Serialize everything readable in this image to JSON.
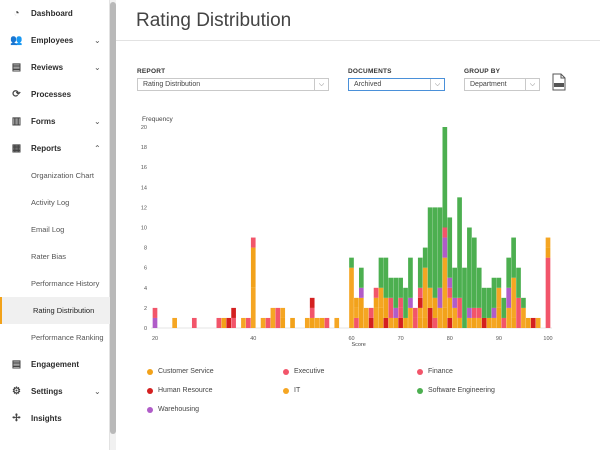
{
  "sidebar": {
    "items": [
      {
        "label": "Dashboard",
        "icon": "dashboard-icon",
        "glyph": "◔",
        "chev": ""
      },
      {
        "label": "Employees",
        "icon": "employees-icon",
        "glyph": "👥",
        "chev": "⌄"
      },
      {
        "label": "Reviews",
        "icon": "reviews-icon",
        "glyph": "▤",
        "chev": "⌄"
      },
      {
        "label": "Processes",
        "icon": "processes-icon",
        "glyph": "⟳",
        "chev": ""
      },
      {
        "label": "Forms",
        "icon": "forms-icon",
        "glyph": "▥",
        "chev": "⌄"
      },
      {
        "label": "Reports",
        "icon": "reports-icon",
        "glyph": "▦",
        "chev": "⌃"
      }
    ],
    "report_items": [
      "Organization Chart",
      "Activity Log",
      "Email Log",
      "Rater Bias",
      "Performance History",
      "Rating Distribution",
      "Performance Ranking"
    ],
    "active_report": "Rating Distribution",
    "bottom_items": [
      {
        "label": "Engagement",
        "icon": "engagement-icon",
        "glyph": "▤",
        "chev": ""
      },
      {
        "label": "Settings",
        "icon": "settings-icon",
        "glyph": "⚙",
        "chev": "⌄"
      },
      {
        "label": "Insights",
        "icon": "insights-icon",
        "glyph": "✢",
        "chev": ""
      }
    ]
  },
  "page": {
    "title": "Rating Distribution"
  },
  "filters": {
    "report_label": "REPORT",
    "report_value": "Rating Distribution",
    "documents_label": "DOCUMENTS",
    "documents_value": "Archived",
    "group_label": "GROUP BY",
    "group_value": "Department",
    "pdf_icon": "pdf-icon"
  },
  "colors": {
    "Customer Service": "#f2a21a",
    "Executive": "#f2556a",
    "Finance": "#f2556a",
    "Human Resource": "#d42020",
    "IT": "#f5a623",
    "Software Engineering": "#4caf50",
    "Warehousing": "#b05cc8"
  },
  "chart_data": {
    "type": "bar",
    "stacked": true,
    "ylabel": "Frequency",
    "xlabel": "Score",
    "xlim": [
      20,
      100
    ],
    "ylim": [
      0,
      20
    ],
    "yticks": [
      0,
      2,
      4,
      6,
      8,
      10,
      12,
      14,
      16,
      18,
      20
    ],
    "xticks": [
      20,
      40,
      60,
      70,
      80,
      90,
      100
    ],
    "grid": false,
    "legend_position": "bottom",
    "bars": [
      {
        "x": 20,
        "stack": [
          [
            "Warehousing",
            1
          ],
          [
            "Executive",
            1
          ]
        ]
      },
      {
        "x": 24,
        "stack": [
          [
            "IT",
            1
          ]
        ]
      },
      {
        "x": 28,
        "stack": [
          [
            "Executive",
            1
          ]
        ]
      },
      {
        "x": 33,
        "stack": [
          [
            "Executive",
            1
          ]
        ]
      },
      {
        "x": 34,
        "stack": [
          [
            "Customer Service",
            1
          ]
        ]
      },
      {
        "x": 35,
        "stack": [
          [
            "Human Resource",
            1
          ]
        ]
      },
      {
        "x": 36,
        "stack": [
          [
            "Executive",
            1
          ],
          [
            "Human Resource",
            1
          ]
        ]
      },
      {
        "x": 38,
        "stack": [
          [
            "IT",
            1
          ]
        ]
      },
      {
        "x": 39,
        "stack": [
          [
            "Finance",
            1
          ]
        ]
      },
      {
        "x": 40,
        "stack": [
          [
            "IT",
            4
          ],
          [
            "Customer Service",
            4
          ],
          [
            "Executive",
            1
          ]
        ]
      },
      {
        "x": 42,
        "stack": [
          [
            "IT",
            1
          ]
        ]
      },
      {
        "x": 43,
        "stack": [
          [
            "Executive",
            1
          ]
        ]
      },
      {
        "x": 44,
        "stack": [
          [
            "IT",
            2
          ]
        ]
      },
      {
        "x": 45,
        "stack": [
          [
            "Finance",
            2
          ]
        ]
      },
      {
        "x": 46,
        "stack": [
          [
            "Customer Service",
            1
          ],
          [
            "IT",
            1
          ]
        ]
      },
      {
        "x": 48,
        "stack": [
          [
            "Customer Service",
            1
          ]
        ]
      },
      {
        "x": 51,
        "stack": [
          [
            "IT",
            1
          ]
        ]
      },
      {
        "x": 52,
        "stack": [
          [
            "Customer Service",
            1
          ],
          [
            "Executive",
            1
          ],
          [
            "Human Resource",
            1
          ]
        ]
      },
      {
        "x": 53,
        "stack": [
          [
            "IT",
            1
          ]
        ]
      },
      {
        "x": 54,
        "stack": [
          [
            "Customer Service",
            1
          ]
        ]
      },
      {
        "x": 55,
        "stack": [
          [
            "Finance",
            1
          ]
        ]
      },
      {
        "x": 57,
        "stack": [
          [
            "IT",
            1
          ]
        ]
      },
      {
        "x": 60,
        "stack": [
          [
            "IT",
            6
          ],
          [
            "Software Engineering",
            1
          ]
        ]
      },
      {
        "x": 61,
        "stack": [
          [
            "Finance",
            1
          ],
          [
            "IT",
            1
          ],
          [
            "Customer Service",
            1
          ]
        ]
      },
      {
        "x": 62,
        "stack": [
          [
            "Customer Service",
            3
          ],
          [
            "Warehousing",
            1
          ],
          [
            "Software Engineering",
            2
          ]
        ]
      },
      {
        "x": 63,
        "stack": [
          [
            "IT",
            2
          ]
        ]
      },
      {
        "x": 64,
        "stack": [
          [
            "Human Resource",
            1
          ],
          [
            "Finance",
            1
          ]
        ]
      },
      {
        "x": 65,
        "stack": [
          [
            "IT",
            2
          ],
          [
            "Customer Service",
            1
          ],
          [
            "Executive",
            1
          ]
        ]
      },
      {
        "x": 66,
        "stack": [
          [
            "Customer Service",
            2
          ],
          [
            "IT",
            2
          ],
          [
            "Software Engineering",
            3
          ]
        ]
      },
      {
        "x": 67,
        "stack": [
          [
            "Human Resource",
            1
          ],
          [
            "Customer Service",
            2
          ],
          [
            "Software Engineering",
            4
          ]
        ]
      },
      {
        "x": 68,
        "stack": [
          [
            "IT",
            1
          ],
          [
            "Finance",
            2
          ],
          [
            "Software Engineering",
            2
          ]
        ]
      },
      {
        "x": 69,
        "stack": [
          [
            "Customer Service",
            1
          ],
          [
            "Warehousing",
            1
          ],
          [
            "Software Engineering",
            3
          ]
        ]
      },
      {
        "x": 70,
        "stack": [
          [
            "Human Resource",
            1
          ],
          [
            "Executive",
            1
          ],
          [
            "Finance",
            1
          ],
          [
            "Software Engineering",
            2
          ]
        ]
      },
      {
        "x": 71,
        "stack": [
          [
            "Customer Service",
            1
          ],
          [
            "Software Engineering",
            3
          ]
        ]
      },
      {
        "x": 72,
        "stack": [
          [
            "IT",
            2
          ],
          [
            "Warehousing",
            1
          ],
          [
            "Software Engineering",
            4
          ]
        ]
      },
      {
        "x": 73,
        "stack": [
          [
            "Finance",
            1
          ],
          [
            "Executive",
            1
          ]
        ]
      },
      {
        "x": 74,
        "stack": [
          [
            "Customer Service",
            1
          ],
          [
            "IT",
            1
          ],
          [
            "Human Resource",
            1
          ],
          [
            "Finance",
            1
          ],
          [
            "Software Engineering",
            3
          ]
        ]
      },
      {
        "x": 75,
        "stack": [
          [
            "Customer Service",
            1
          ],
          [
            "IT",
            5
          ],
          [
            "Software Engineering",
            2
          ]
        ]
      },
      {
        "x": 76,
        "stack": [
          [
            "Human Resource",
            2
          ],
          [
            "IT",
            2
          ],
          [
            "Software Engineering",
            8
          ]
        ]
      },
      {
        "x": 77,
        "stack": [
          [
            "Executive",
            1
          ],
          [
            "Customer Service",
            2
          ],
          [
            "Software Engineering",
            9
          ]
        ]
      },
      {
        "x": 78,
        "stack": [
          [
            "IT",
            2
          ],
          [
            "Warehousing",
            2
          ],
          [
            "Software Engineering",
            8
          ]
        ]
      },
      {
        "x": 79,
        "stack": [
          [
            "Customer Service",
            2
          ],
          [
            "IT",
            5
          ],
          [
            "Warehousing",
            2
          ],
          [
            "Finance",
            1
          ],
          [
            "Software Engineering",
            10
          ]
        ]
      },
      {
        "x": 80,
        "stack": [
          [
            "Human Resource",
            1
          ],
          [
            "Customer Service",
            2
          ],
          [
            "Finance",
            1
          ],
          [
            "Warehousing",
            1
          ],
          [
            "Software Engineering",
            6
          ]
        ]
      },
      {
        "x": 81,
        "stack": [
          [
            "IT",
            2
          ],
          [
            "Warehousing",
            1
          ],
          [
            "Software Engineering",
            3
          ]
        ]
      },
      {
        "x": 82,
        "stack": [
          [
            "Customer Service",
            1
          ],
          [
            "Finance",
            2
          ],
          [
            "Software Engineering",
            10
          ]
        ]
      },
      {
        "x": 83,
        "stack": [
          [
            "Software Engineering",
            6
          ]
        ]
      },
      {
        "x": 84,
        "stack": [
          [
            "IT",
            1
          ],
          [
            "Warehousing",
            1
          ],
          [
            "Software Engineering",
            8
          ]
        ]
      },
      {
        "x": 85,
        "stack": [
          [
            "Customer Service",
            1
          ],
          [
            "Executive",
            1
          ],
          [
            "Software Engineering",
            7
          ]
        ]
      },
      {
        "x": 86,
        "stack": [
          [
            "IT",
            1
          ],
          [
            "Finance",
            1
          ],
          [
            "Software Engineering",
            4
          ]
        ]
      },
      {
        "x": 87,
        "stack": [
          [
            "Human Resource",
            1
          ],
          [
            "Software Engineering",
            3
          ]
        ]
      },
      {
        "x": 88,
        "stack": [
          [
            "Customer Service",
            1
          ],
          [
            "Software Engineering",
            3
          ]
        ]
      },
      {
        "x": 89,
        "stack": [
          [
            "IT",
            1
          ],
          [
            "Warehousing",
            1
          ],
          [
            "Software Engineering",
            3
          ]
        ]
      },
      {
        "x": 90,
        "stack": [
          [
            "Customer Service",
            2
          ],
          [
            "IT",
            2
          ],
          [
            "Software Engineering",
            1
          ]
        ]
      },
      {
        "x": 91,
        "stack": [
          [
            "Executive",
            1
          ],
          [
            "Software Engineering",
            2
          ]
        ]
      },
      {
        "x": 92,
        "stack": [
          [
            "IT",
            2
          ],
          [
            "Warehousing",
            2
          ],
          [
            "Software Engineering",
            3
          ]
        ]
      },
      {
        "x": 93,
        "stack": [
          [
            "Customer Service",
            1
          ],
          [
            "IT",
            4
          ],
          [
            "Software Engineering",
            4
          ]
        ]
      },
      {
        "x": 94,
        "stack": [
          [
            "Finance",
            3
          ],
          [
            "Software Engineering",
            3
          ]
        ]
      },
      {
        "x": 95,
        "stack": [
          [
            "IT",
            2
          ],
          [
            "Software Engineering",
            1
          ]
        ]
      },
      {
        "x": 96,
        "stack": [
          [
            "Customer Service",
            1
          ]
        ]
      },
      {
        "x": 97,
        "stack": [
          [
            "Human Resource",
            1
          ]
        ]
      },
      {
        "x": 98,
        "stack": [
          [
            "IT",
            1
          ]
        ]
      },
      {
        "x": 100,
        "stack": [
          [
            "Finance",
            7
          ],
          [
            "Customer Service",
            1
          ],
          [
            "IT",
            1
          ]
        ]
      }
    ],
    "legend": [
      "Customer Service",
      "Executive",
      "Finance",
      "Human Resource",
      "IT",
      "Software Engineering",
      "Warehousing"
    ]
  }
}
